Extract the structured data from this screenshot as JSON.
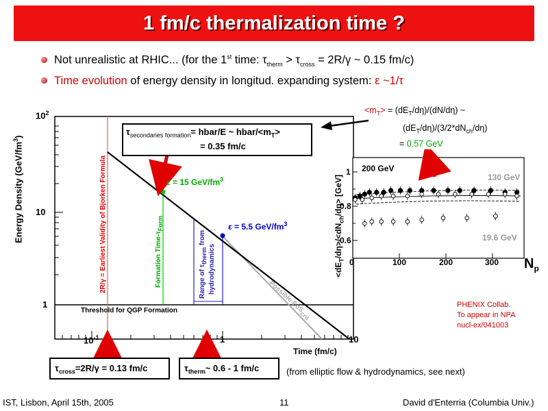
{
  "title": "1 fm/c thermalization time ?",
  "bullet1": {
    "pre": "Not unrealistic at RHIC... (for the 1",
    "sup": "st",
    "mid": " time: τ",
    "sub1": "therm",
    "gt": " > τ",
    "sub2": "cross",
    "post": " = 2R/γ ~ 0.15 fm/c)"
  },
  "bullet2": {
    "red": "Time evolution",
    "rest": " of energy density in longitud. expanding system: ",
    "eps": "ε ~1/τ"
  },
  "plot1": {
    "ylabel": "Energy Density (GeV/fm",
    "ylabel_sup": "3",
    "ylabel_end": ")",
    "y_tick_100": "10",
    "y_tick_100_sup": "2",
    "y_tick_10": "10",
    "y_tick_1": "1",
    "x_tick_01": "10",
    "x_tick_01_sup": "-1",
    "x_tick_1": "1",
    "x_tick_10": "10",
    "xlabel": "Time (fm/c)",
    "bjorken_label": "2R/γ = Earliest Validity of Bjorken Formula",
    "formation_label": "Formation Time-τ",
    "formation_sub": "Form",
    "therm_label1": "Range of τ",
    "therm_label_sub": "therm",
    "therm_label1b": " from",
    "therm_label2": "hydrodynamics",
    "threshold_label": "Threshold for QGP Formation",
    "eos_label": "Possible EoS",
    "eos_sub": "crit",
    "eps15": "ε = 15 GeV/fm",
    "eps15_sup": "3",
    "eps55": "ε = 5.5 GeV/fm",
    "eps55_sup": "3"
  },
  "formation_box": {
    "tau": "τ",
    "tau_sub": "secondaries formation",
    "line1": "= hbar/E ~ hbar/<m",
    "line1_sub": "T",
    "line1_end": ">",
    "line2": "= 0.35 fm/c"
  },
  "mt_text": {
    "line1a": "<m",
    "line1_sub": "T",
    "line1b": ">",
    "line1c": " = (dE",
    "line1_sub2": "T",
    "line1d": "/dη)/(dN/dη) ~",
    "line2a": "(dE",
    "line2_sub": "T",
    "line2b": "/dη)/(3/2*dN",
    "line2_sub2": "ch",
    "line2c": "/dη)",
    "line3a": "= ",
    "line3b": "0.57 GeV"
  },
  "plot2": {
    "ylabel": "<dE",
    "ylabel_sub": "T",
    "ylabel_mid": "/dη>/<dN",
    "ylabel_sub2": "ch",
    "ylabel_end": "/dη> [GeV]",
    "y_ticks": [
      "1",
      "0.8",
      "0.6"
    ],
    "x_ticks": [
      "0",
      "100",
      "200",
      "300"
    ],
    "xlabel": "N",
    "xlabel_sub": "p",
    "label_200": "200 GeV",
    "label_130": "130 GeV",
    "label_19": "19.6 GeV"
  },
  "phenix": {
    "line1": "PHENIX Collab.",
    "line2": "To appear in NPA",
    "line3": "nucl-ex/041003"
  },
  "box_cross": {
    "tau": "τ",
    "sub": "cross",
    "rest": "=2R/γ = 0.13 fm/c"
  },
  "box_therm": {
    "tau": "τ",
    "sub": "therm",
    "rest": "~ 0.6 - 1 fm/c"
  },
  "elliptic_note": "(from elliptic flow & hydrodynamics, see next)",
  "footer": {
    "left": "IST, Lisbon, April 15th, 2005",
    "page": "11",
    "right": "David d'Enterria (Columbia Univ.)"
  },
  "colors": {
    "title_bg": "#ee1111",
    "accent_red": "#cc0000",
    "green": "#00aa00",
    "blue": "#0000cc"
  },
  "chart_data": [
    {
      "type": "line",
      "xlabel": "Time (fm/c)",
      "ylabel": "Energy Density (GeV/fm3)",
      "xscale": "log",
      "yscale": "log",
      "xlim": [
        0.07,
        10
      ],
      "ylim": [
        0.6,
        100
      ],
      "series": [
        {
          "values": [
            [
              0.13,
              40
            ],
            [
              0.35,
              15
            ],
            [
              1.0,
              5.5
            ],
            [
              10,
              0.55
            ]
          ]
        }
      ],
      "points": [
        {
          "x": 0.35,
          "y": 15,
          "label": "ε = 15 GeV/fm3"
        },
        {
          "x": 1.0,
          "y": 5.5,
          "label": "ε = 5.5 GeV/fm3"
        }
      ],
      "vertical_lines": [
        0.13,
        0.35,
        0.6,
        1.0
      ],
      "threshold": 1
    },
    {
      "type": "scatter",
      "ylabel": "<dET/dη>/<dNch/dη> [GeV]",
      "xlabel": "Np",
      "xlim": [
        0,
        360
      ],
      "ylim": [
        0.5,
        1.05
      ],
      "series": [
        {
          "name": "200 GeV",
          "x": [
            5,
            15,
            25,
            35,
            50,
            65,
            80,
            100,
            120,
            145,
            170,
            200,
            225,
            255,
            290,
            320,
            345
          ],
          "values": [
            0.83,
            0.84,
            0.85,
            0.86,
            0.86,
            0.86,
            0.87,
            0.87,
            0.87,
            0.87,
            0.87,
            0.87,
            0.87,
            0.87,
            0.87,
            0.86,
            0.86
          ]
        },
        {
          "name": "130 GeV",
          "x": [
            5,
            20,
            40,
            60,
            85,
            115,
            145,
            180,
            215,
            250,
            285,
            320,
            345
          ],
          "values": [
            0.82,
            0.82,
            0.83,
            0.84,
            0.84,
            0.84,
            0.85,
            0.85,
            0.85,
            0.85,
            0.85,
            0.85,
            0.84
          ]
        },
        {
          "name": "19.6 GeV",
          "x": [
            25,
            40,
            60,
            85,
            115,
            145,
            190,
            240,
            300
          ],
          "values": [
            0.69,
            0.7,
            0.7,
            0.7,
            0.7,
            0.71,
            0.72,
            0.72,
            0.73
          ]
        }
      ]
    }
  ]
}
